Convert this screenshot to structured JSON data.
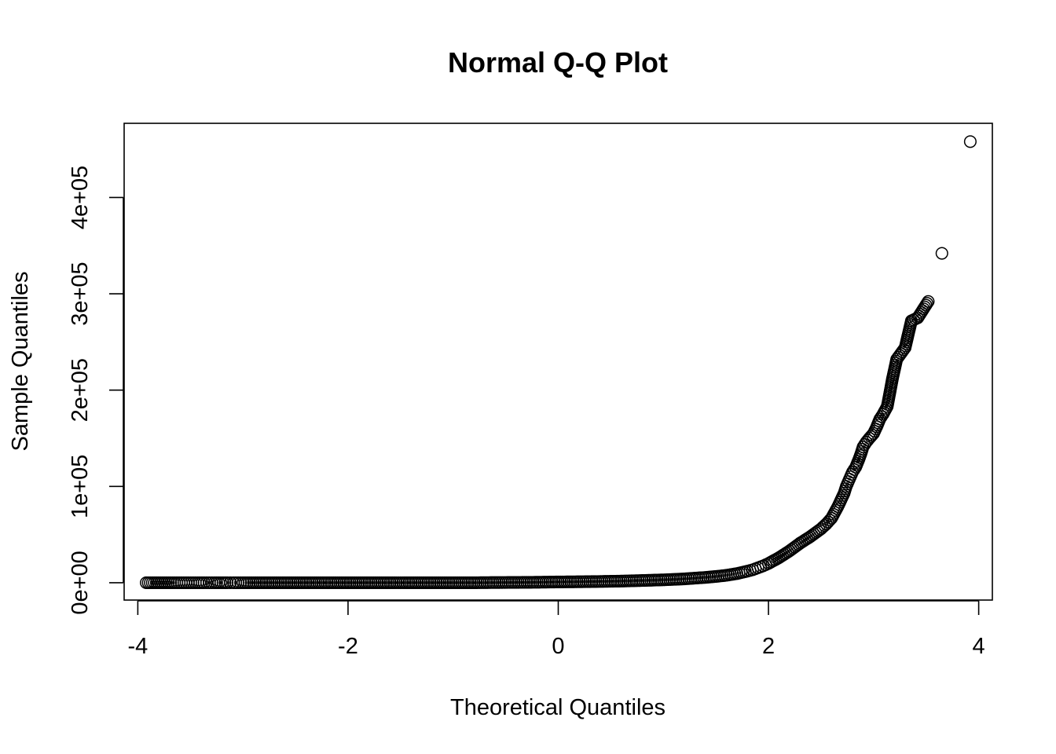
{
  "chart_data": {
    "type": "scatter",
    "title": "Normal Q-Q Plot",
    "xlabel": "Theoretical Quantiles",
    "ylabel": "Sample Quantiles",
    "xlim": [
      -4.13,
      4.13
    ],
    "ylim": [
      -18000,
      477000
    ],
    "grid": false,
    "legend": "none",
    "marker": "open-circle",
    "x_ticks": [
      {
        "value": -4,
        "label": "-4"
      },
      {
        "value": -2,
        "label": "-2"
      },
      {
        "value": 0,
        "label": "0"
      },
      {
        "value": 2,
        "label": "2"
      },
      {
        "value": 4,
        "label": "4"
      }
    ],
    "y_ticks": [
      {
        "value": 0,
        "label": "0e+00"
      },
      {
        "value": 100000,
        "label": "1e+05"
      },
      {
        "value": 200000,
        "label": "2e+05"
      },
      {
        "value": 300000,
        "label": "3e+05"
      },
      {
        "value": 400000,
        "label": "4e+05"
      }
    ],
    "points": [
      [
        -3.92,
        0
      ],
      [
        -3.65,
        0
      ],
      [
        -3.52,
        0
      ],
      [
        -3.43,
        0
      ],
      [
        -3.37,
        0
      ],
      [
        -3.32,
        0
      ],
      [
        -3.27,
        0
      ],
      [
        -3.23,
        0
      ],
      [
        -3.19,
        0
      ],
      [
        -3.15,
        0
      ],
      [
        -3.12,
        0
      ],
      [
        -3.09,
        0
      ],
      [
        -3.0,
        0
      ],
      [
        -2.8,
        0
      ],
      [
        -2.6,
        0
      ],
      [
        -2.4,
        0
      ],
      [
        -2.2,
        0
      ],
      [
        -2.0,
        0
      ],
      [
        -1.8,
        0
      ],
      [
        -1.6,
        0
      ],
      [
        -1.4,
        0
      ],
      [
        -1.2,
        0
      ],
      [
        -1.0,
        0
      ],
      [
        -0.8,
        0
      ],
      [
        -0.6,
        200
      ],
      [
        -0.4,
        300
      ],
      [
        -0.2,
        500
      ],
      [
        0.0,
        800
      ],
      [
        0.2,
        1000
      ],
      [
        0.4,
        1300
      ],
      [
        0.6,
        1700
      ],
      [
        0.8,
        2300
      ],
      [
        1.0,
        3000
      ],
      [
        1.2,
        4000
      ],
      [
        1.4,
        5500
      ],
      [
        1.5,
        6500
      ],
      [
        1.6,
        7700
      ],
      [
        1.7,
        9500
      ],
      [
        1.8,
        12000
      ],
      [
        1.85,
        13500
      ],
      [
        1.9,
        15500
      ],
      [
        1.95,
        17500
      ],
      [
        2.0,
        20000
      ],
      [
        2.05,
        23000
      ],
      [
        2.1,
        26000
      ],
      [
        2.15,
        29500
      ],
      [
        2.2,
        33000
      ],
      [
        2.25,
        37000
      ],
      [
        2.3,
        41000
      ],
      [
        2.35,
        44500
      ],
      [
        2.4,
        48000
      ],
      [
        2.45,
        52000
      ],
      [
        2.5,
        56000
      ],
      [
        2.55,
        61000
      ],
      [
        2.6,
        67000
      ],
      [
        2.63,
        73000
      ],
      [
        2.66,
        79000
      ],
      [
        2.69,
        86000
      ],
      [
        2.72,
        93000
      ],
      [
        2.74,
        100000
      ],
      [
        2.76,
        105000
      ],
      [
        2.78,
        110000
      ],
      [
        2.8,
        115000
      ],
      [
        2.83,
        120000
      ],
      [
        2.86,
        128000
      ],
      [
        2.88,
        134000
      ],
      [
        2.9,
        141000
      ],
      [
        2.93,
        146000
      ],
      [
        2.96,
        150000
      ],
      [
        3.0,
        155000
      ],
      [
        3.03,
        162000
      ],
      [
        3.06,
        170000
      ],
      [
        3.09,
        175000
      ],
      [
        3.13,
        183000
      ],
      [
        3.18,
        212000
      ],
      [
        3.22,
        232000
      ],
      [
        3.26,
        238000
      ],
      [
        3.3,
        244000
      ],
      [
        3.36,
        272000
      ],
      [
        3.42,
        275000
      ],
      [
        3.52,
        292000
      ],
      [
        3.65,
        342000
      ],
      [
        3.92,
        458000
      ]
    ]
  }
}
